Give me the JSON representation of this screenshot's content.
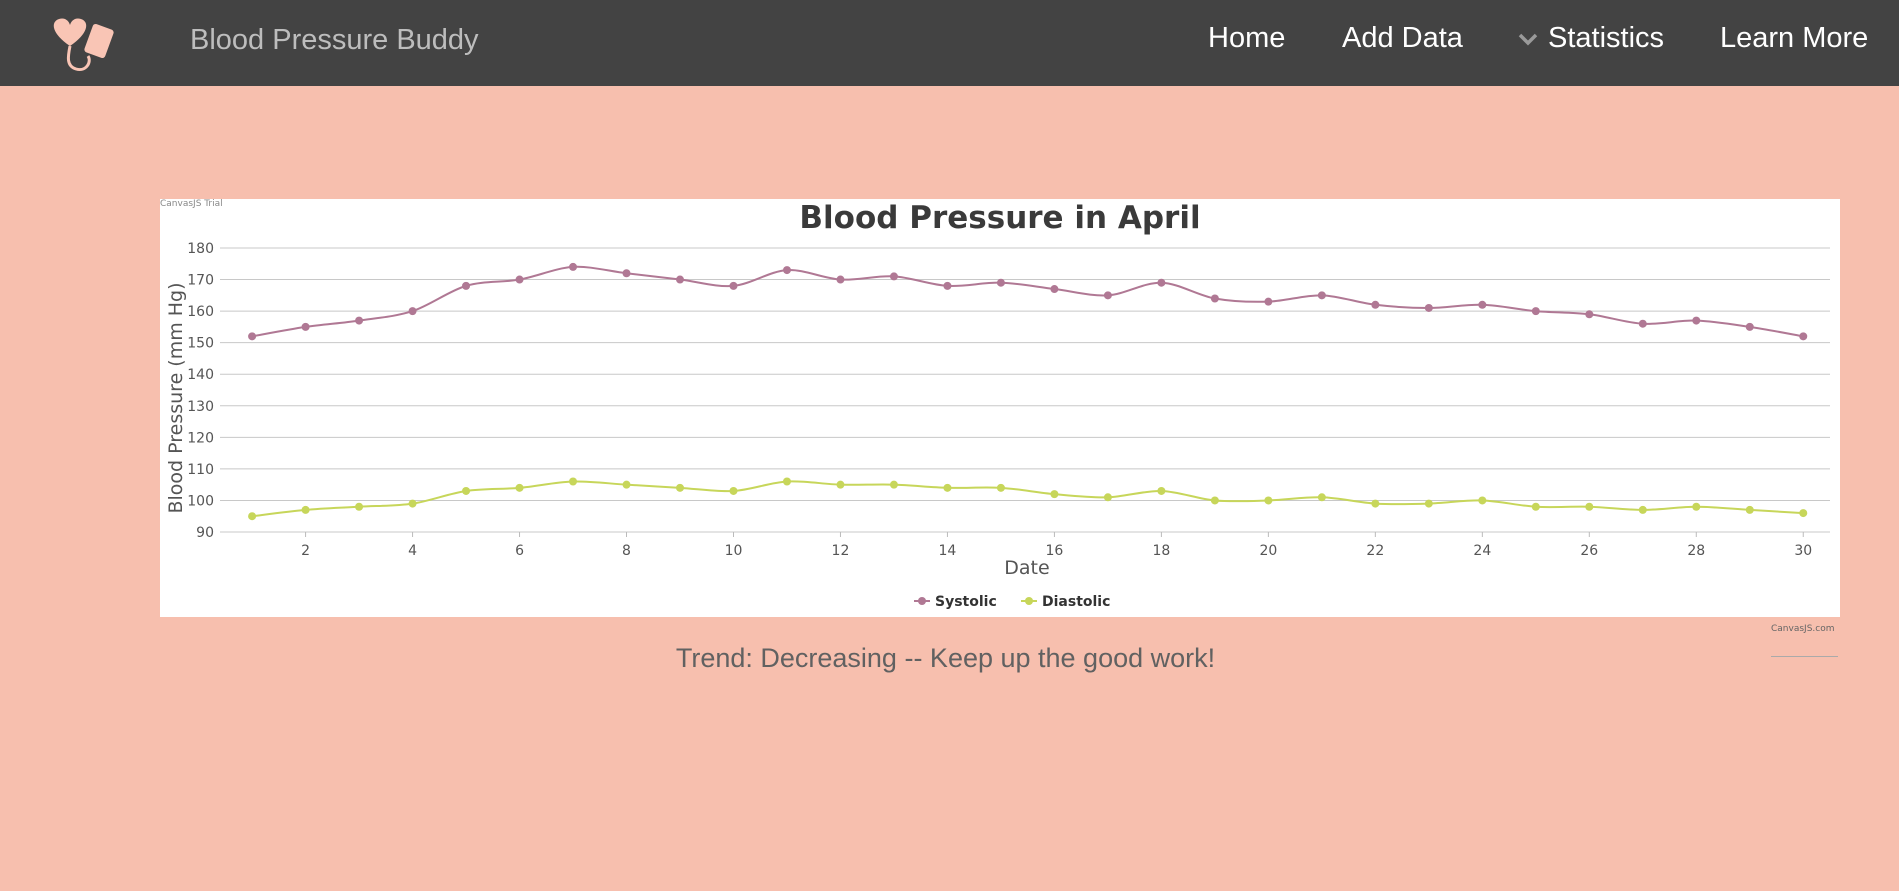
{
  "header": {
    "brand": "Blood Pressure Buddy",
    "logo_icon": "heart-cuff-icon",
    "nav": [
      {
        "label": "Home"
      },
      {
        "label": "Add Data"
      },
      {
        "label": "Statistics",
        "has_dropdown": true,
        "icon": "chevron-down-icon"
      },
      {
        "label": "Learn More"
      }
    ]
  },
  "chart": {
    "trial_label": "CanvasJS Trial",
    "credit": "CanvasJS.com"
  },
  "chart_data": {
    "type": "line",
    "title": "Blood Pressure in April",
    "xlabel": "Date",
    "ylabel": "Blood Pressure (mm Hg)",
    "xlim": [
      0.4,
      30.5
    ],
    "ylim": [
      90,
      180
    ],
    "xticks": [
      2,
      4,
      6,
      8,
      10,
      12,
      14,
      16,
      18,
      20,
      22,
      24,
      26,
      28,
      30
    ],
    "yticks": [
      90,
      100,
      110,
      120,
      130,
      140,
      150,
      160,
      170,
      180
    ],
    "grid": true,
    "legend_position": "bottom-center",
    "x": [
      1,
      2,
      3,
      4,
      5,
      6,
      7,
      8,
      9,
      10,
      11,
      12,
      13,
      14,
      15,
      16,
      17,
      18,
      19,
      20,
      21,
      22,
      23,
      24,
      25,
      26,
      27,
      28,
      29,
      30
    ],
    "series": [
      {
        "name": "Systolic",
        "color": "#b07894",
        "values": [
          152,
          155,
          157,
          160,
          168,
          170,
          174,
          172,
          170,
          168,
          173,
          170,
          171,
          168,
          169,
          167,
          165,
          169,
          164,
          163,
          165,
          162,
          161,
          162,
          160,
          159,
          156,
          157,
          155,
          152
        ]
      },
      {
        "name": "Diastolic",
        "color": "#c7d65a",
        "values": [
          95,
          97,
          98,
          99,
          103,
          104,
          106,
          105,
          104,
          103,
          106,
          105,
          105,
          104,
          104,
          102,
          101,
          103,
          100,
          100,
          101,
          99,
          99,
          100,
          98,
          98,
          97,
          98,
          97,
          96
        ]
      }
    ]
  },
  "trend": {
    "text": "Trend: Decreasing -- Keep up the good work!"
  },
  "colors": {
    "background": "#f7bfae",
    "navbar": "#434343",
    "accent": "#f9c5b5"
  }
}
